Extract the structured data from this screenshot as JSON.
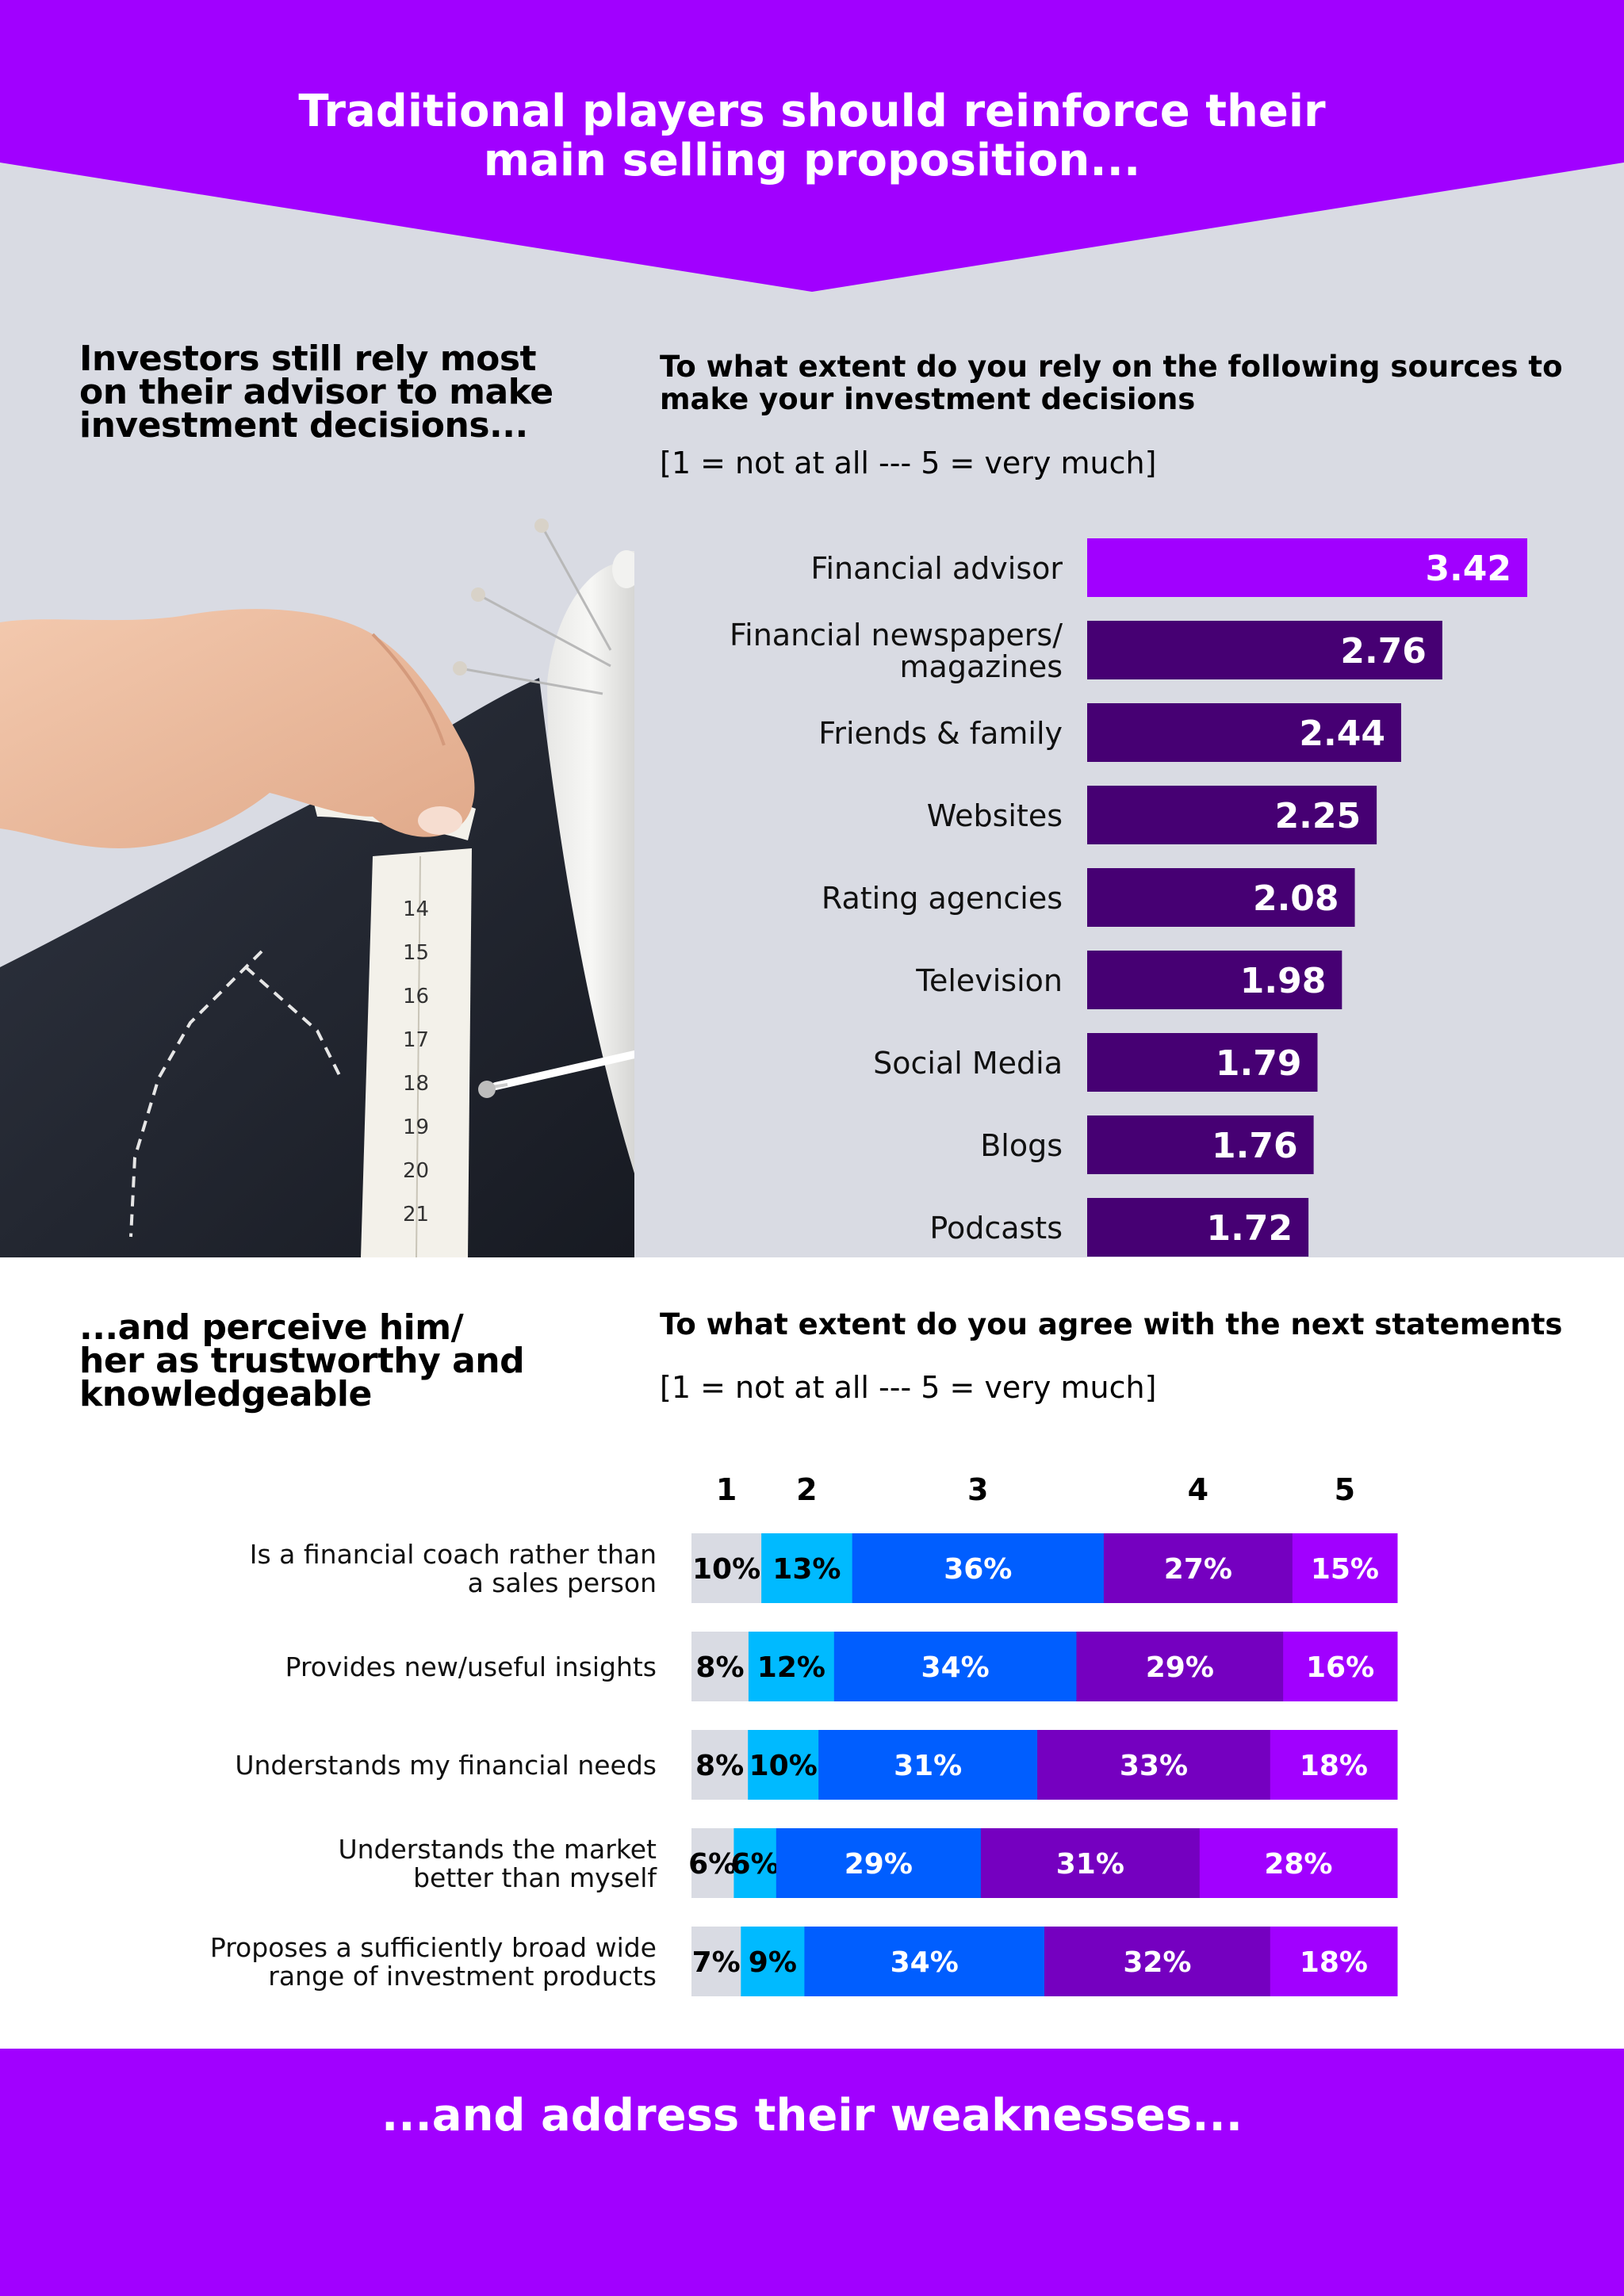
{
  "header": {
    "title_line1": "Traditional players should reinforce their",
    "title_line2": "main selling proposition..."
  },
  "section1": {
    "heading_lines": [
      "Investors still rely most",
      "on their advisor to make",
      "investment decisions..."
    ],
    "question_lines": [
      "To what extent do you rely on the following sources to",
      "make your investment decisions"
    ],
    "scale_note": "[1 = not at all --- 5 = very much]"
  },
  "section2": {
    "heading_lines": [
      "...and perceive him/",
      "her as trustworthy and",
      "knowledgeable"
    ],
    "question": "To what extent do you agree with the next statements",
    "scale_note": "[1 = not at all --- 5 = very much]"
  },
  "footer": {
    "text": "...and address their weaknesses..."
  },
  "colors": {
    "brand_purple": "#a100ff",
    "dark_purple": "#460073",
    "background_gray": "#d9dbe3",
    "scale_1": "#d9dbe3",
    "scale_2": "#00baff",
    "scale_3": "#005eff",
    "scale_4": "#7500c0",
    "scale_5": "#a100ff"
  },
  "chart_data": [
    {
      "type": "bar",
      "orientation": "horizontal",
      "categories": [
        [
          "Financial advisor"
        ],
        [
          "Financial newspapers/",
          "magazines"
        ],
        [
          "Friends & family"
        ],
        [
          "Websites"
        ],
        [
          "Rating agencies"
        ],
        [
          "Television"
        ],
        [
          "Social Media"
        ],
        [
          "Blogs"
        ],
        [
          "Podcasts"
        ]
      ],
      "values": [
        3.42,
        2.76,
        2.44,
        2.25,
        2.08,
        1.98,
        1.79,
        1.76,
        1.72
      ],
      "value_labels": [
        "3.42",
        "2.76",
        "2.44",
        "2.25",
        "2.08",
        "1.98",
        "1.79",
        "1.76",
        "1.72"
      ],
      "highlight_index": 0,
      "xlim": [
        0,
        5
      ],
      "grid": false
    },
    {
      "type": "bar",
      "orientation": "horizontal",
      "stacked": true,
      "percent": true,
      "column_headers": [
        "1",
        "2",
        "3",
        "4",
        "5"
      ],
      "categories": [
        [
          "Is a financial coach rather than",
          "a sales person"
        ],
        [
          "Provides new/useful insights"
        ],
        [
          "Understands my financial needs"
        ],
        [
          "Understands the market",
          "better than myself"
        ],
        [
          "Proposes a sufficiently broad wide",
          "range of investment products"
        ]
      ],
      "series": [
        {
          "name": "1",
          "values": [
            10,
            8,
            8,
            6,
            7
          ]
        },
        {
          "name": "2",
          "values": [
            13,
            12,
            10,
            6,
            9
          ]
        },
        {
          "name": "3",
          "values": [
            36,
            34,
            31,
            29,
            34
          ]
        },
        {
          "name": "4",
          "values": [
            27,
            29,
            33,
            31,
            32
          ]
        },
        {
          "name": "5",
          "values": [
            15,
            16,
            18,
            28,
            18
          ]
        }
      ],
      "value_labels": [
        [
          "10%",
          "13%",
          "36%",
          "27%",
          "15%"
        ],
        [
          "8%",
          "12%",
          "34%",
          "29%",
          "16%"
        ],
        [
          "8%",
          "10%",
          "31%",
          "33%",
          "18%"
        ],
        [
          "6%",
          "6%",
          "29%",
          "31%",
          "28%"
        ],
        [
          "7%",
          "9%",
          "34%",
          "32%",
          "18%"
        ]
      ],
      "grid": false
    }
  ]
}
